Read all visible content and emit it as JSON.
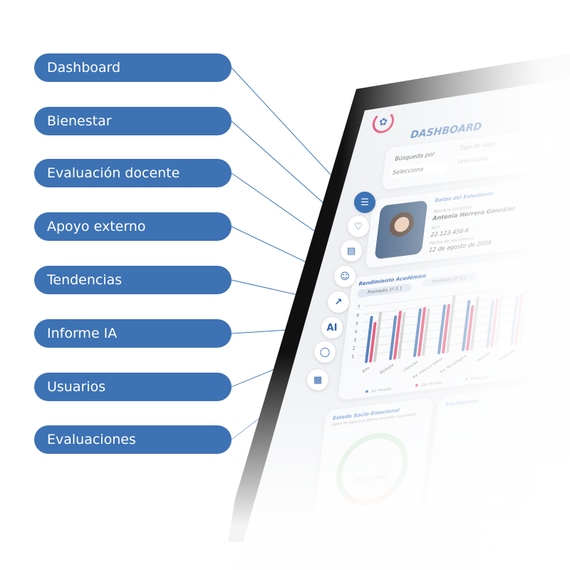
{
  "menu": [
    {
      "label": "Dashboard",
      "icon": "list-icon"
    },
    {
      "label": "Bienestar",
      "icon": "hands-heart-icon"
    },
    {
      "label": "Evaluación docente",
      "icon": "document-icon"
    },
    {
      "label": "Apoyo externo",
      "icon": "person-support-icon"
    },
    {
      "label": "Tendencias",
      "icon": "trend-chart-icon"
    },
    {
      "label": "Informe IA",
      "icon": "ai-icon"
    },
    {
      "label": "Usuarios",
      "icon": "user-icon"
    },
    {
      "label": "Evaluaciones",
      "icon": "evaluation-icon"
    }
  ],
  "colors": {
    "accent": "#3d72b4",
    "pink": "#e0456b",
    "gray": "#c8c8c8"
  },
  "screen": {
    "title": "DASHBOARD",
    "filters": [
      {
        "label": "Búsqueda por",
        "value": "Selecciona"
      },
      {
        "label": "Tipo de dato",
        "value": "Selecciona"
      }
    ],
    "student": {
      "section": "Datos del Estudiante",
      "name_label": "Nombre completo",
      "name": "Antonia Herrera González",
      "rut_label": "RUT",
      "rut": "22.123.456-K",
      "dob_label": "Fecha de nacimiento",
      "dob": "12 de agosto de 2008"
    },
    "performance": {
      "title": "Rendimiento Académico",
      "avg1": "Promedio 1º 5.1",
      "avg2": "Promedio 2º 5.1"
    },
    "socio": {
      "title": "Estado Socio-Emocional",
      "subtitle": "Datos en base a la última encuesta respondida",
      "values": "13% 22% 45%"
    },
    "sociogram": {
      "title": "Sociograma"
    }
  },
  "chart_data": {
    "type": "bar",
    "title": "Rendimiento Académico",
    "categories": [
      "Arte",
      "Biología",
      "Ciencias",
      "Ed. Física y Salud",
      "Ed. Tecnológica",
      "Historia",
      "Lenguaje"
    ],
    "series": [
      {
        "name": "1er Período",
        "values": [
          5.7,
          5.4,
          5.9,
          6.0,
          6.2,
          5.8,
          6.0
        ]
      },
      {
        "name": "2do Período",
        "values": [
          4.9,
          5.9,
          6.0,
          6.0,
          5.5,
          6.0,
          6.2
        ]
      },
      {
        "name": "Promedio",
        "values": [
          6.1,
          5.7,
          5.8,
          7.0,
          6.5,
          6.3,
          6.5
        ]
      }
    ],
    "yticks": [
      1,
      2,
      3,
      4,
      5,
      6,
      7
    ],
    "ylim": [
      0,
      7
    ],
    "legend": "bottom"
  }
}
